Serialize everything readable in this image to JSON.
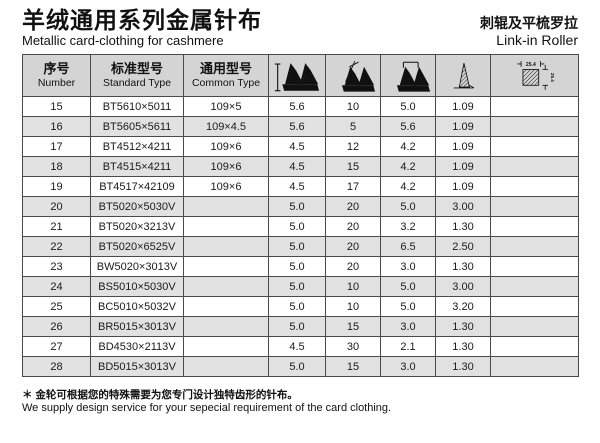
{
  "header": {
    "title_zh": "羊绒通用系列金属针布",
    "title_en": "Metallic card-clothing for cashmere",
    "product_zh": "刺辊及平梳罗拉",
    "product_en": "Link-in Roller"
  },
  "table": {
    "columns": [
      {
        "zh": "序号",
        "en": "Number"
      },
      {
        "zh": "标准型号",
        "en": "Standard Type"
      },
      {
        "zh": "通用型号",
        "en": "Common Type"
      },
      {
        "icon": "tooth-total-height-icon"
      },
      {
        "icon": "tooth-front-angle-icon"
      },
      {
        "icon": "tooth-pitch-icon"
      },
      {
        "icon": "tooth-base-width-icon"
      },
      {
        "icon": "points-per-square-inch-icon",
        "dim_label": "25.4"
      }
    ],
    "rows": [
      [
        "15",
        "BT5610×5011",
        "109×5",
        "5.6",
        "10",
        "5.0",
        "1.09",
        ""
      ],
      [
        "16",
        "BT5605×5611",
        "109×4.5",
        "5.6",
        "5",
        "5.6",
        "1.09",
        ""
      ],
      [
        "17",
        "BT4512×4211",
        "109×6",
        "4.5",
        "12",
        "4.2",
        "1.09",
        ""
      ],
      [
        "18",
        "BT4515×4211",
        "109×6",
        "4.5",
        "15",
        "4.2",
        "1.09",
        ""
      ],
      [
        "19",
        "BT4517×42109",
        "109×6",
        "4.5",
        "17",
        "4.2",
        "1.09",
        ""
      ],
      [
        "20",
        "BT5020×5030V",
        "",
        "5.0",
        "20",
        "5.0",
        "3.00",
        ""
      ],
      [
        "21",
        "BT5020×3213V",
        "",
        "5.0",
        "20",
        "3.2",
        "1.30",
        ""
      ],
      [
        "22",
        "BT5020×6525V",
        "",
        "5.0",
        "20",
        "6.5",
        "2.50",
        ""
      ],
      [
        "23",
        "BW5020×3013V",
        "",
        "5.0",
        "20",
        "3.0",
        "1.30",
        ""
      ],
      [
        "24",
        "BS5010×5030V",
        "",
        "5.0",
        "10",
        "5.0",
        "3.00",
        ""
      ],
      [
        "25",
        "BC5010×5032V",
        "",
        "5.0",
        "10",
        "5.0",
        "3.20",
        ""
      ],
      [
        "26",
        "BR5015×3013V",
        "",
        "5.0",
        "15",
        "3.0",
        "1.30",
        ""
      ],
      [
        "27",
        "BD4530×2113V",
        "",
        "4.5",
        "30",
        "2.1",
        "1.30",
        ""
      ],
      [
        "28",
        "BD5015×3013V",
        "",
        "5.0",
        "15",
        "3.0",
        "1.30",
        ""
      ]
    ]
  },
  "footer": {
    "note_zh": "＊ 金轮可根据您的特殊需要为您专门设计独特齿形的针布。",
    "note_en": "We supply design service for your sepecial requirement of the card clothing."
  },
  "colors": {
    "page_bg": "#ffffff",
    "header_row_bg": "#d4d4d4",
    "shaded_row_bg": "#e1e1e1",
    "grid_border": "#4a4a4a",
    "text": "#111111"
  }
}
